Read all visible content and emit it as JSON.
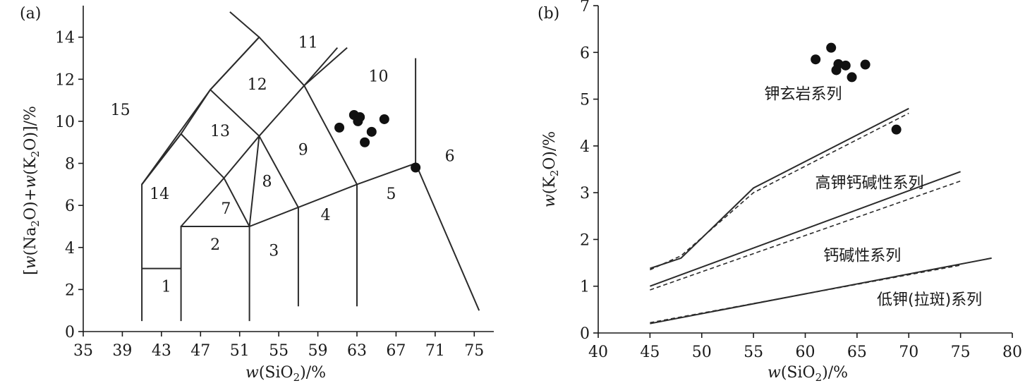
{
  "chart_data": [
    {
      "type": "scatter",
      "panel_label": "(a)",
      "xlabel": "w(SiO2)/%",
      "ylabel": "[w(Na2O)+w(K2O)]/%",
      "xlim": [
        35,
        77
      ],
      "ylim": [
        0,
        15.5
      ],
      "xticks": [
        35,
        39,
        43,
        47,
        51,
        55,
        59,
        63,
        67,
        71,
        75
      ],
      "yticks": [
        0,
        2,
        4,
        6,
        8,
        10,
        12,
        14
      ],
      "field_labels": [
        {
          "text": "1",
          "x": 43.5,
          "y": 1.9
        },
        {
          "text": "2",
          "x": 48.5,
          "y": 3.9
        },
        {
          "text": "3",
          "x": 54.5,
          "y": 3.6
        },
        {
          "text": "4",
          "x": 59.8,
          "y": 5.3
        },
        {
          "text": "5",
          "x": 66.5,
          "y": 6.3
        },
        {
          "text": "6",
          "x": 72.5,
          "y": 8.1
        },
        {
          "text": "7",
          "x": 49.6,
          "y": 5.6
        },
        {
          "text": "8",
          "x": 53.8,
          "y": 6.9
        },
        {
          "text": "9",
          "x": 57.5,
          "y": 8.4
        },
        {
          "text": "10",
          "x": 65.2,
          "y": 11.9
        },
        {
          "text": "11",
          "x": 58.0,
          "y": 13.5
        },
        {
          "text": "12",
          "x": 52.8,
          "y": 11.5
        },
        {
          "text": "13",
          "x": 49.0,
          "y": 9.3
        },
        {
          "text": "14",
          "x": 42.8,
          "y": 6.3
        },
        {
          "text": "15",
          "x": 38.8,
          "y": 10.3
        }
      ],
      "boundaries": [
        [
          [
            41,
            0.5
          ],
          [
            41,
            7
          ],
          [
            45,
            9.4
          ],
          [
            49.4,
            7.3
          ],
          [
            53,
            9.3
          ],
          [
            57.6,
            11.7
          ],
          [
            61,
            13.5
          ]
        ],
        [
          [
            41,
            3
          ],
          [
            45,
            3
          ]
        ],
        [
          [
            45,
            0.5
          ],
          [
            45,
            5
          ],
          [
            52,
            5
          ],
          [
            63,
            7
          ],
          [
            69,
            8
          ],
          [
            75.5,
            1
          ]
        ],
        [
          [
            45,
            5
          ],
          [
            49.4,
            7.3
          ],
          [
            52,
            5
          ],
          [
            52,
            0.5
          ]
        ],
        [
          [
            57,
            1.2
          ],
          [
            57,
            5.9
          ]
        ],
        [
          [
            63,
            1.2
          ],
          [
            63,
            7
          ]
        ],
        [
          [
            45,
            9.4
          ],
          [
            41,
            7
          ]
        ],
        [
          [
            45,
            9.4
          ],
          [
            48,
            11.5
          ],
          [
            53,
            9.3
          ]
        ],
        [
          [
            48,
            11.5
          ],
          [
            53,
            14
          ]
        ],
        [
          [
            41,
            7
          ],
          [
            48,
            11.5
          ],
          [
            53,
            14
          ],
          [
            57.6,
            11.7
          ]
        ],
        [
          [
            53,
            14
          ],
          [
            50,
            15.2
          ]
        ],
        [
          [
            52,
            5
          ],
          [
            53,
            9.3
          ]
        ],
        [
          [
            57,
            5.9
          ],
          [
            53,
            9.3
          ]
        ],
        [
          [
            63,
            7
          ],
          [
            57.6,
            11.7
          ]
        ],
        [
          [
            57.6,
            11.7
          ],
          [
            62,
            13.5
          ]
        ],
        [
          [
            69,
            8
          ],
          [
            69,
            13
          ]
        ]
      ],
      "points": [
        {
          "x": 61.2,
          "y": 9.7
        },
        {
          "x": 62.7,
          "y": 10.3
        },
        {
          "x": 63.3,
          "y": 10.2
        },
        {
          "x": 63.1,
          "y": 10.0
        },
        {
          "x": 64.5,
          "y": 9.5
        },
        {
          "x": 63.8,
          "y": 9.0
        },
        {
          "x": 65.8,
          "y": 10.1
        },
        {
          "x": 69.0,
          "y": 7.8
        }
      ]
    },
    {
      "type": "line",
      "panel_label": "(b)",
      "xlabel": "w(SiO2)/%",
      "ylabel": "w(K2O)/%",
      "xlim": [
        40,
        80
      ],
      "ylim": [
        0,
        7
      ],
      "xticks": [
        40,
        45,
        50,
        55,
        60,
        65,
        70,
        75,
        80
      ],
      "yticks": [
        0,
        1,
        2,
        3,
        4,
        5,
        6,
        7
      ],
      "series": [
        {
          "style": "solid",
          "x": [
            45,
            48,
            55,
            70
          ],
          "y": [
            1.38,
            1.6,
            3.1,
            4.8
          ]
        },
        {
          "style": "dashed",
          "x": [
            45,
            48,
            55,
            70
          ],
          "y": [
            1.35,
            1.65,
            3.0,
            4.7
          ]
        },
        {
          "style": "solid",
          "x": [
            45,
            75
          ],
          "y": [
            1.0,
            3.45
          ]
        },
        {
          "style": "dashed",
          "x": [
            45,
            75
          ],
          "y": [
            0.92,
            3.25
          ]
        },
        {
          "style": "solid",
          "x": [
            45,
            78
          ],
          "y": [
            0.2,
            1.6
          ]
        },
        {
          "style": "dashed",
          "x": [
            45,
            75
          ],
          "y": [
            0.22,
            1.45
          ]
        }
      ],
      "series_labels": [
        {
          "text": "钾玄岩系列",
          "x": 59.8,
          "y": 5.0
        },
        {
          "text": "高钾钙碱性系列",
          "x": 66.2,
          "y": 3.1
        },
        {
          "text": "钙碱性系列",
          "x": 65.5,
          "y": 1.55
        },
        {
          "text": "低钾(拉斑)系列",
          "x": 72.0,
          "y": 0.6
        }
      ],
      "points": [
        {
          "x": 61.0,
          "y": 5.85
        },
        {
          "x": 62.5,
          "y": 6.1
        },
        {
          "x": 63.2,
          "y": 5.75
        },
        {
          "x": 63.0,
          "y": 5.62
        },
        {
          "x": 63.9,
          "y": 5.72
        },
        {
          "x": 64.5,
          "y": 5.47
        },
        {
          "x": 65.8,
          "y": 5.74
        },
        {
          "x": 68.8,
          "y": 4.35
        }
      ]
    }
  ]
}
